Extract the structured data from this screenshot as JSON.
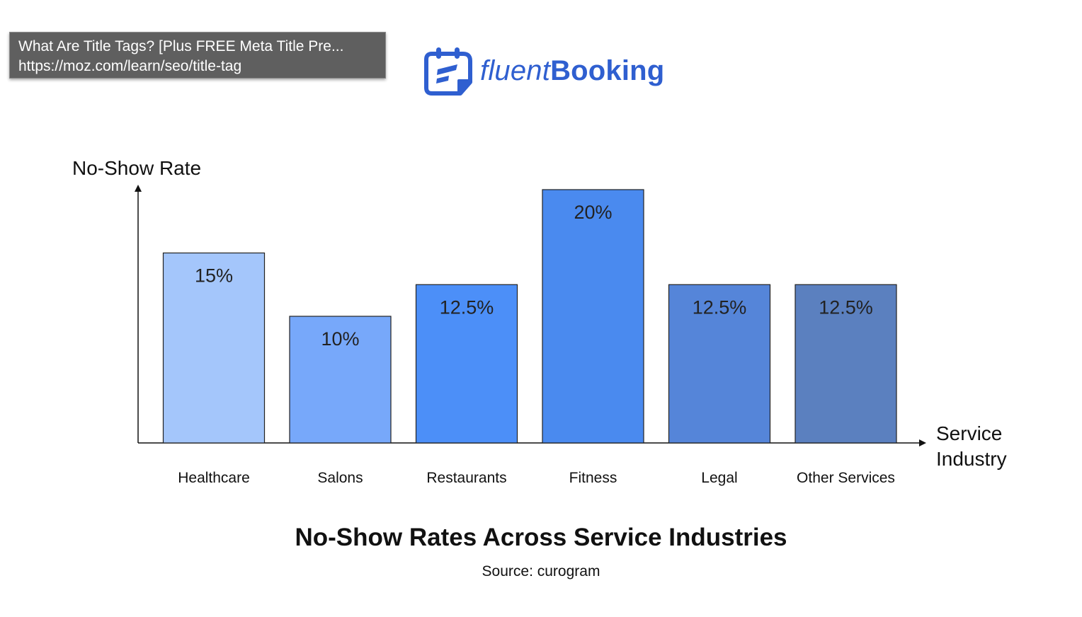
{
  "tooltip": {
    "title": "What Are Title Tags? [Plus FREE Meta Title Pre...",
    "url": "https://moz.com/learn/seo/title-tag"
  },
  "logo": {
    "icon": "calendar-icon",
    "text_light": "fluent",
    "text_bold": "Booking",
    "color": "#2f5fd0"
  },
  "chart_data": {
    "type": "bar",
    "title": "No-Show Rates Across Service Industries",
    "source": "Source: curogram",
    "ylabel": "No-Show Rate",
    "xlabel": "Service Industry",
    "categories": [
      "Healthcare",
      "Salons",
      "Restaurants",
      "Fitness",
      "Legal",
      "Other Services"
    ],
    "values": [
      15,
      10,
      12.5,
      20,
      12.5,
      12.5
    ],
    "data_labels": [
      "15%",
      "10%",
      "12.5%",
      "20%",
      "12.5%",
      "12.5%"
    ],
    "colors": [
      "#a4c6fb",
      "#77a8fa",
      "#4c8ff8",
      "#4a8aef",
      "#5585d9",
      "#5b80bf"
    ],
    "ylim": [
      0,
      20
    ],
    "grid": false,
    "legend": "none"
  }
}
